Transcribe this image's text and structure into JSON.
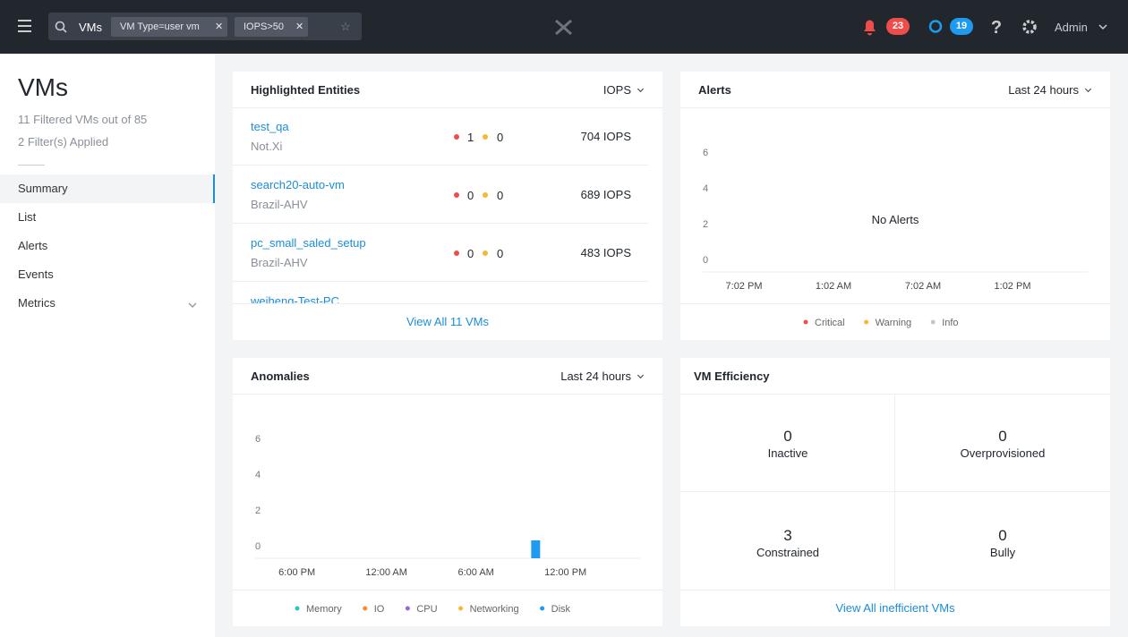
{
  "topbar": {
    "search_label": "VMs",
    "filters": [
      "VM Type=user vm",
      "IOPS>50"
    ],
    "alerts_count": 23,
    "tasks_count": 19,
    "user": "Admin"
  },
  "sidebar": {
    "title": "VMs",
    "subtitle": "11 Filtered VMs out of 85",
    "filters_applied": "2 Filter(s) Applied",
    "nav": [
      "Summary",
      "List",
      "Alerts",
      "Events",
      "Metrics"
    ],
    "active_index": 0
  },
  "highlighted": {
    "title": "Highlighted Entities",
    "metric": "IOPS",
    "rows": [
      {
        "name": "test_qa",
        "cluster": "Not.Xi",
        "critical": 1,
        "warning": 0,
        "iops": "704 IOPS"
      },
      {
        "name": "search20-auto-vm",
        "cluster": "Brazil-AHV",
        "critical": 0,
        "warning": 0,
        "iops": "689 IOPS"
      },
      {
        "name": "pc_small_saled_setup",
        "cluster": "Brazil-AHV",
        "critical": 0,
        "warning": 0,
        "iops": "483 IOPS"
      },
      {
        "name": "weiheng-Test-PC"
      }
    ],
    "footer": "View All 11 VMs"
  },
  "alerts": {
    "title": "Alerts",
    "range": "Last 24 hours",
    "message": "No Alerts",
    "chart_data": {
      "type": "bar",
      "categories": [
        "7:02 PM",
        "1:02 AM",
        "7:02 AM",
        "1:02 PM"
      ],
      "ylim": [
        0,
        7
      ],
      "yticks": [
        0,
        2,
        4,
        6
      ],
      "legend": [
        {
          "name": "Critical",
          "color": "#ef4c4c"
        },
        {
          "name": "Warning",
          "color": "#f5b82e"
        },
        {
          "name": "Info",
          "color": "#c4c8cd"
        }
      ]
    }
  },
  "anomalies": {
    "title": "Anomalies",
    "range": "Last 24 hours",
    "chart_data": {
      "type": "bar",
      "xlim": [
        15.2,
        41
      ],
      "xticks": [
        {
          "value": 18,
          "label": "6:00 PM"
        },
        {
          "value": 24,
          "label": "12:00 AM"
        },
        {
          "value": 30,
          "label": "6:00 AM"
        },
        {
          "value": 36,
          "label": "12:00 PM"
        }
      ],
      "ylim": [
        0,
        7
      ],
      "yticks": [
        0,
        2,
        4,
        6
      ],
      "series": [
        {
          "name": "Memory",
          "color": "#2ec4c4",
          "x": [],
          "values": []
        },
        {
          "name": "IO",
          "color": "#f58a3c",
          "x": [],
          "values": []
        },
        {
          "name": "CPU",
          "color": "#8f6bd8",
          "x": [],
          "values": []
        },
        {
          "name": "Networking",
          "color": "#f5b82e",
          "x": [],
          "values": []
        },
        {
          "name": "Disk",
          "color": "#1e9bf0",
          "x": [
            34
          ],
          "values": [
            1
          ]
        }
      ]
    }
  },
  "efficiency": {
    "title": "VM Efficiency",
    "cells": [
      {
        "value": 0,
        "label": "Inactive"
      },
      {
        "value": 0,
        "label": "Overprovisioned"
      },
      {
        "value": 3,
        "label": "Constrained"
      },
      {
        "value": 0,
        "label": "Bully"
      }
    ],
    "footer": "View All inefficient VMs"
  }
}
